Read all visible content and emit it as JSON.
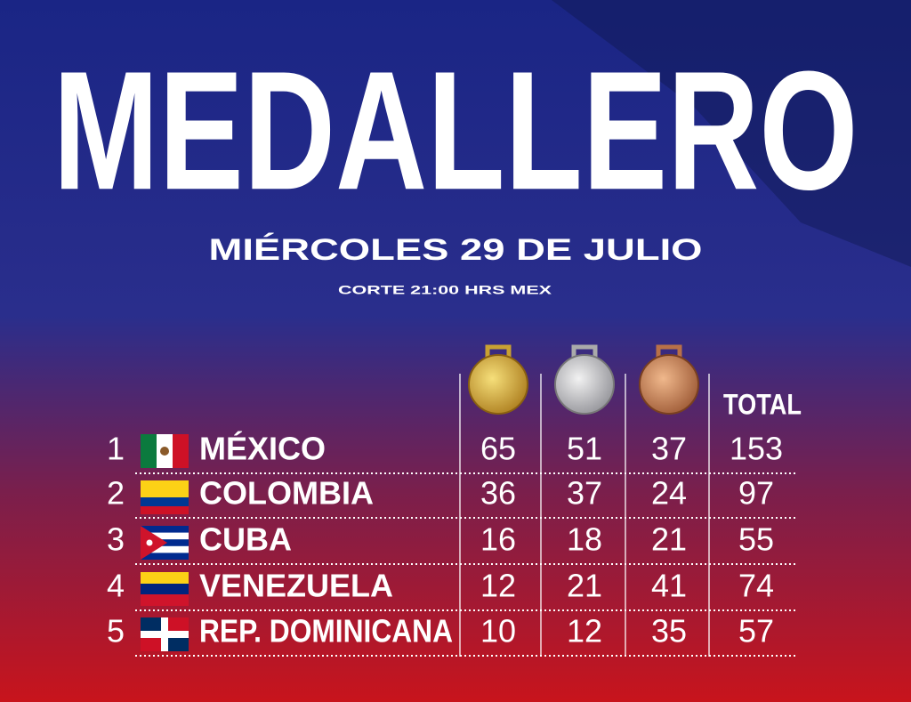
{
  "header": {
    "title": "MEDALLERO",
    "subtitle": "MIÉRCOLES 29 DE JULIO",
    "note": "CORTE 21:00 HRS MEX"
  },
  "table": {
    "total_header": "TOTAL",
    "rows": [
      [
        "1",
        "MÉXICO",
        "65",
        "51",
        "37",
        "153"
      ],
      [
        "2",
        "COLOMBIA",
        "36",
        "37",
        "24",
        "97"
      ],
      [
        "3",
        "CUBA",
        "16",
        "18",
        "21",
        "55"
      ],
      [
        "4",
        "VENEZUELA",
        "12",
        "21",
        "41",
        "74"
      ],
      [
        "5",
        "REP. DOMINICANA",
        "10",
        "12",
        "35",
        "57"
      ]
    ]
  }
}
